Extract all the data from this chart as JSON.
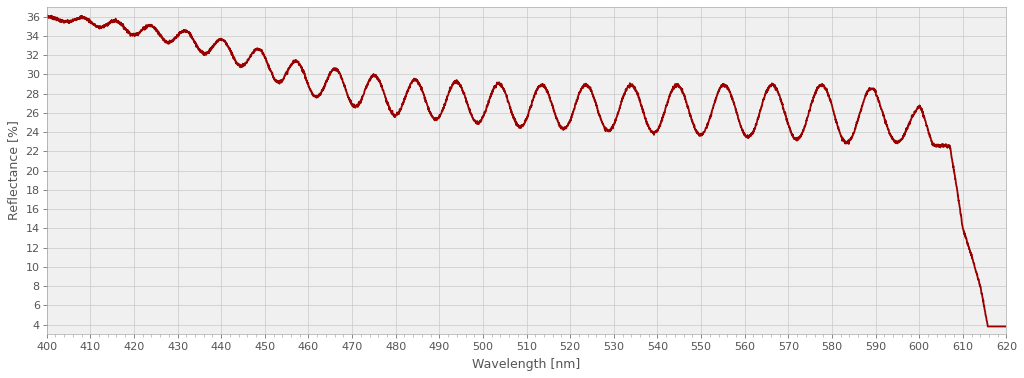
{
  "xlabel": "Wavelength [nm]",
  "ylabel": "Reflectance [%]",
  "xlim": [
    400,
    620
  ],
  "ylim": [
    3,
    37
  ],
  "xticks": [
    400,
    410,
    420,
    430,
    440,
    450,
    460,
    470,
    480,
    490,
    500,
    510,
    520,
    530,
    540,
    550,
    560,
    570,
    580,
    590,
    600,
    610,
    620
  ],
  "yticks": [
    4,
    6,
    8,
    10,
    12,
    14,
    16,
    18,
    20,
    22,
    24,
    26,
    28,
    30,
    32,
    34,
    36
  ],
  "line_color": "#990000",
  "line_width": 1.3,
  "bg_color": "#f0f0f0",
  "grid_color": "#c8c8c8",
  "label_fontsize": 9,
  "tick_fontsize": 8
}
